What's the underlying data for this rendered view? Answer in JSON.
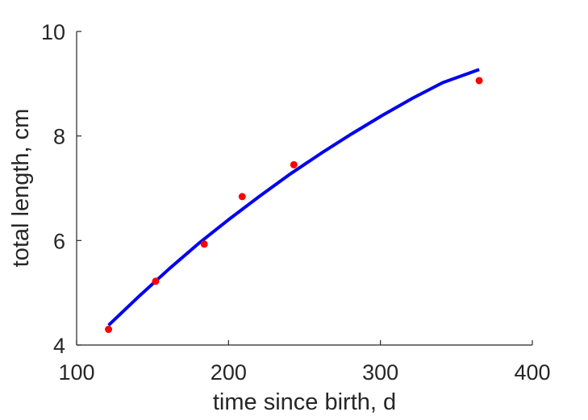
{
  "chart_data": {
    "type": "scatter",
    "title": "",
    "xlabel": "time since birth, d",
    "ylabel": "total length, cm",
    "xlim": [
      100,
      400
    ],
    "ylim": [
      4,
      10
    ],
    "xticks": [
      "100",
      "200",
      "300",
      "400"
    ],
    "yticks": [
      "4",
      "6",
      "8",
      "10"
    ],
    "grid": false,
    "series": [
      {
        "kind": "points",
        "color": "#ff0000",
        "x": [
          121,
          152,
          184,
          209,
          243,
          365
        ],
        "y": [
          4.3,
          5.22,
          5.93,
          6.84,
          7.45,
          9.06
        ]
      },
      {
        "kind": "line",
        "color": "#0000ee",
        "x": [
          121,
          141,
          161,
          181,
          201,
          221,
          241,
          261,
          281,
          301,
          321,
          341,
          365
        ],
        "y": [
          4.38,
          4.93,
          5.46,
          5.96,
          6.42,
          6.86,
          7.28,
          7.67,
          8.04,
          8.39,
          8.72,
          9.02,
          9.27
        ]
      }
    ]
  }
}
